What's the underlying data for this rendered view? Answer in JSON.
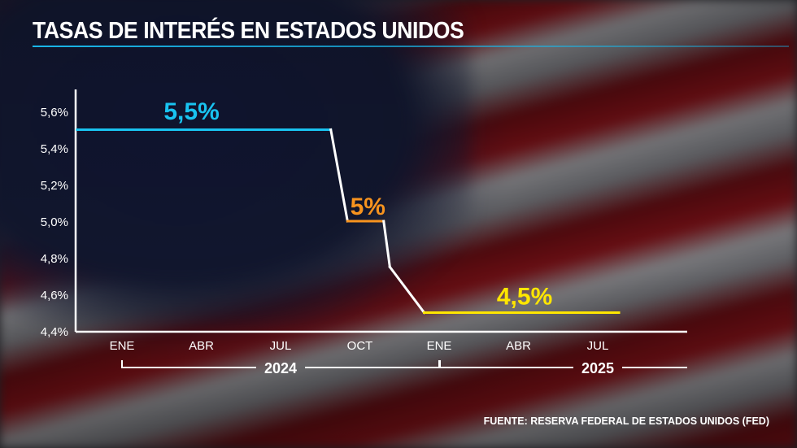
{
  "title": "TASAS DE INTERÉS EN ESTADOS UNIDOS",
  "source": "FUENTE: RESERVA FEDERAL DE ESTADOS UNIDOS (FED)",
  "colors": {
    "accent": "#19b7ea",
    "rate_5_5": "#19c3f0",
    "rate_5": "#f7931e",
    "rate_4_5": "#ffe600",
    "transition": "#ffffff"
  },
  "chart_data": {
    "type": "line",
    "title": "TASAS DE INTERÉS EN ESTADOS UNIDOS",
    "ylim": [
      4.4,
      5.7
    ],
    "yticks": [
      4.4,
      4.6,
      4.8,
      5.0,
      5.2,
      5.4,
      5.6
    ],
    "ytick_labels": [
      "4,4%",
      "4,6%",
      "4,8%",
      "5,0%",
      "5,2%",
      "5,4%",
      "5,6%"
    ],
    "xticks": [
      {
        "label": "ENE",
        "date": "2024-01-01"
      },
      {
        "label": "ABR",
        "date": "2024-04-01"
      },
      {
        "label": "JUL",
        "date": "2024-07-01"
      },
      {
        "label": "OCT",
        "date": "2024-10-01"
      },
      {
        "label": "ENE",
        "date": "2025-01-01"
      },
      {
        "label": "ABR",
        "date": "2025-04-01"
      },
      {
        "label": "JUL",
        "date": "2025-07-01"
      }
    ],
    "years": [
      {
        "label": "2024",
        "start": "2024-01-01",
        "end": "2024-12-31"
      },
      {
        "label": "2025",
        "start": "2025-01-01",
        "end": "2025-12-31"
      }
    ],
    "grid": false,
    "points": [
      {
        "date": "2023-11-10",
        "value": 5.5
      },
      {
        "date": "2024-08-28",
        "value": 5.5
      },
      {
        "date": "2024-09-17",
        "value": 5.0
      },
      {
        "date": "2024-10-28",
        "value": 5.0
      },
      {
        "date": "2024-11-05",
        "value": 4.75
      },
      {
        "date": "2024-12-14",
        "value": 4.5
      },
      {
        "date": "2025-07-25",
        "value": 4.5
      }
    ],
    "annotations": [
      {
        "text": "5,5%",
        "date": "2024-03-20",
        "value": 5.6,
        "color": "#19c3f0"
      },
      {
        "text": "5%",
        "date": "2024-10-10",
        "value": 5.08,
        "color": "#f7931e"
      },
      {
        "text": "4,5%",
        "date": "2025-04-08",
        "value": 4.59,
        "color": "#ffe600"
      }
    ]
  }
}
